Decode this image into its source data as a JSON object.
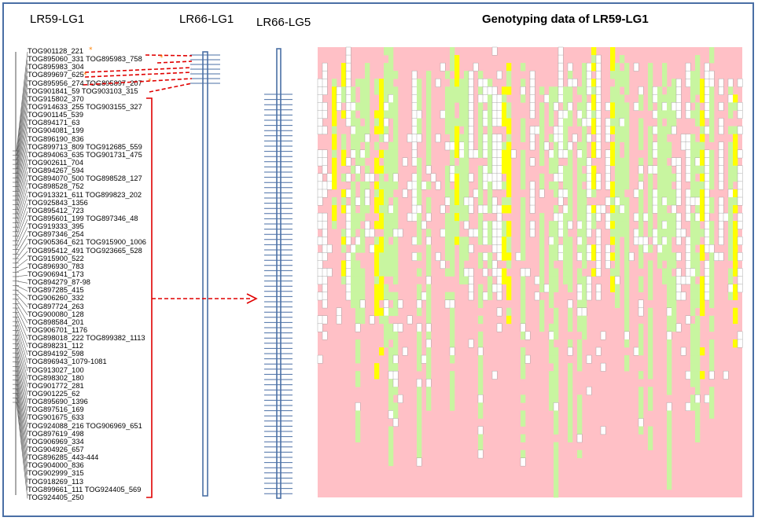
{
  "headers": {
    "lg1": "LR59-LG1",
    "lr66_lg1": "LR66-LG1",
    "lr66_lg5": "LR66-LG5",
    "genotyping": "Genotyping data of LR59-LG1"
  },
  "markers": [
    "TOG901128_221",
    "TOG895060_331 TOG895983_758",
    "TOG895983_304",
    "TOG899697_625",
    "TOG895956_274 TOG895897_207",
    "TOG901841_59 TOG903103_315",
    "TOG915802_370",
    "TOG914633_255 TOG903155_327",
    "TOG901145_539",
    "TOG894171_63",
    "TOG904081_199",
    "TOG896190_836",
    "TOG899713_809 TOG912685_559",
    "TOG894063_635 TOG901731_475",
    "TOG902611_704",
    "TOG894267_594",
    "TOG894070_500 TOG898528_127",
    "TOG898528_752",
    "TOG913321_611 TOG899823_202",
    "TOG925843_1356",
    "TOG895412_723",
    "TOG895601_199 TOG897346_48",
    "TOG919333_395",
    "TOG897346_254",
    "TOG905364_621 TOG915900_1006",
    "TOG895412_491 TOG923665_528",
    "TOG915900_522",
    "TOG896930_783",
    "TOG906941_173",
    "TOG894279_87-98",
    "TOG897285_415",
    "TOG906260_332",
    "TOG897724_263",
    "TOG900080_128",
    "TOG898584_201",
    "TOG906701_1176",
    "TOG898018_222 TOG899382_1113",
    "TOG898231_112",
    "TOG894192_598",
    "TOG896943_1079-1081",
    "TOG913027_100",
    "TOG898302_180",
    "TOG901772_281",
    "TOG901225_62",
    "TOG895690_1396",
    "TOG897516_169",
    "TOG901675_633",
    "TOG924088_216 TOG906969_651",
    "TOG897619_498",
    "TOG906969_334",
    "TOG904926_657",
    "TOG896285_443-444",
    "TOG904000_836",
    "TOG902999_315",
    "TOG918269_113",
    "TOG899661_111 TOG924405_569",
    "TOG924405_250"
  ],
  "colors": {
    "frame": "#4a6fa5",
    "chromosome": "#4a6fa5",
    "connector": "#e00000",
    "star": "#ff8000",
    "pink": "#ffc0c6",
    "green": "#c8f5a0",
    "yellow": "#ffff00",
    "white": "#ffffff",
    "grid": "#999999"
  }
}
